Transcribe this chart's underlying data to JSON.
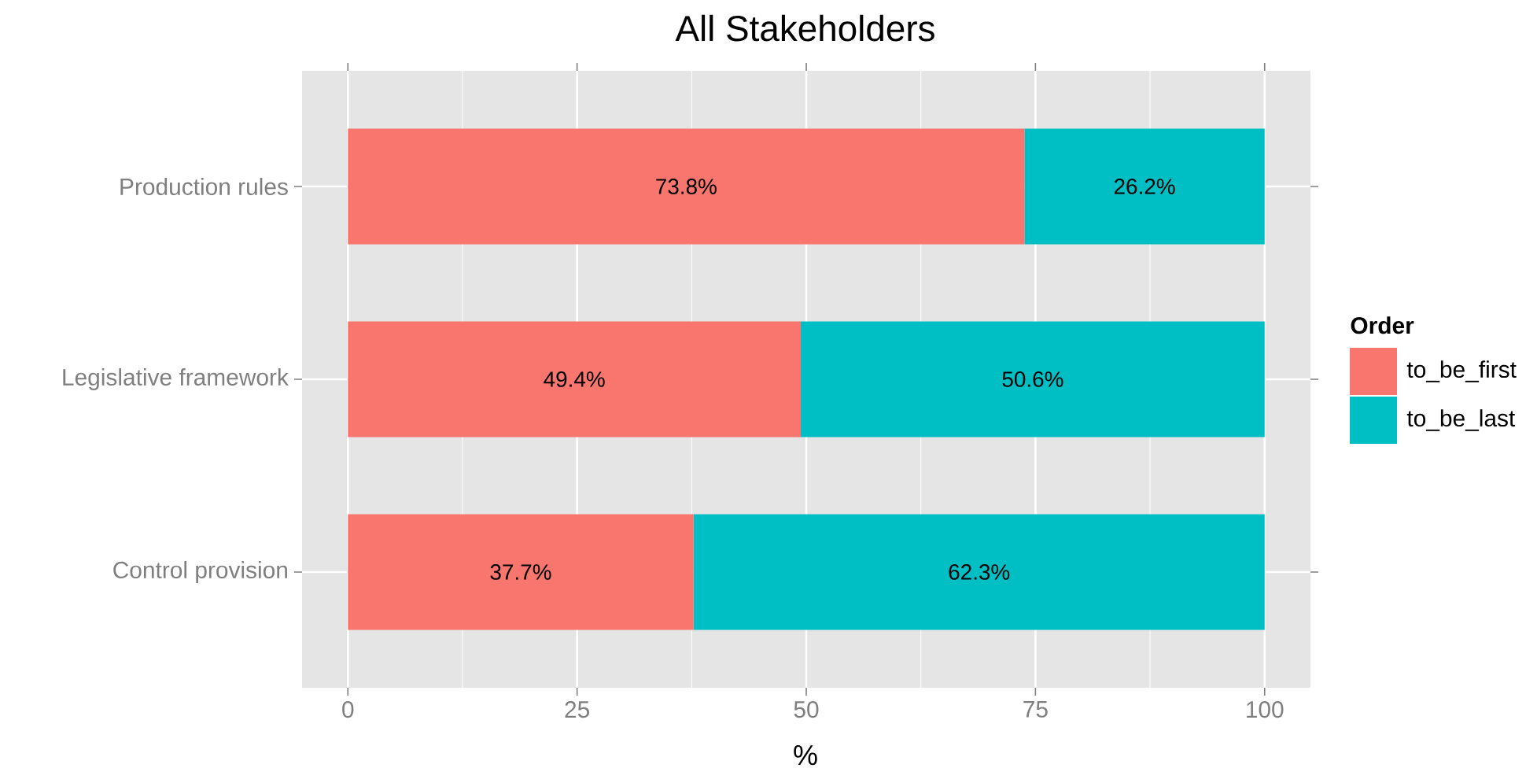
{
  "chart_data": {
    "type": "bar",
    "title": "All Stakeholders",
    "xlabel": "%",
    "legend_title": "Order",
    "orientation": "horizontal",
    "stacked": true,
    "categories": [
      "Production rules",
      "Legislative framework",
      "Control provision"
    ],
    "series": [
      {
        "name": "to_be_first",
        "color": "#f8766d",
        "values": [
          73.8,
          49.4,
          37.7
        ],
        "value_labels": [
          "73.8%",
          "49.4%",
          "37.7%"
        ]
      },
      {
        "name": "to_be_last",
        "color": "#00bfc4",
        "values": [
          26.2,
          50.6,
          62.3
        ],
        "value_labels": [
          "26.2%",
          "50.6%",
          "62.3%"
        ]
      }
    ],
    "xlim": [
      -5,
      105
    ],
    "xticks": [
      0,
      25,
      50,
      75,
      100
    ],
    "grid": true,
    "legend": "right"
  }
}
